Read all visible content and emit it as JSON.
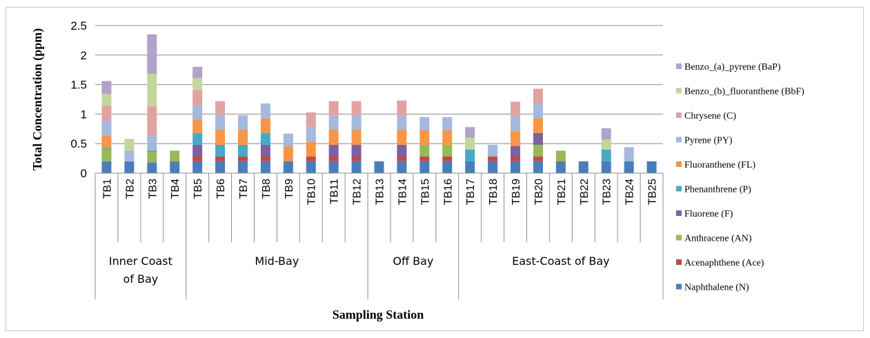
{
  "chart_data": {
    "type": "bar",
    "stacked": true,
    "title": "",
    "ylabel": "Total  Concentration (ppm)",
    "xlabel": "Sampling Station",
    "ylim": [
      0,
      2.5
    ],
    "yticks": [
      "0",
      "0.5",
      "1",
      "1.5",
      "2",
      "2.5"
    ],
    "grid": true,
    "legend_position": "right",
    "categories": [
      "TB1",
      "TB2",
      "TB3",
      "TB4",
      "TB5",
      "TB6",
      "TB7",
      "TB8",
      "TB9",
      "TB10",
      "TB11",
      "TB12",
      "TB13",
      "TB14",
      "TB15",
      "TB16",
      "TB17",
      "TB18",
      "TB19",
      "TB20",
      "TB21",
      "TB22",
      "TB23",
      "TB24",
      "TB25"
    ],
    "groups": [
      {
        "label_lines": [
          "Inner Coast",
          "of Bay"
        ],
        "start": 0,
        "end": 3
      },
      {
        "label_lines": [
          "Mid-Bay"
        ],
        "start": 4,
        "end": 11
      },
      {
        "label_lines": [
          "Off Bay"
        ],
        "start": 12,
        "end": 15
      },
      {
        "label_lines": [
          "East-Coast of Bay"
        ],
        "start": 16,
        "end": 24
      }
    ],
    "series": [
      {
        "name": "Naphthalene (N)",
        "color": "#4a7ebb",
        "values": [
          0.2,
          0.2,
          0.18,
          0.2,
          0.2,
          0.2,
          0.2,
          0.2,
          0.2,
          0.2,
          0.2,
          0.2,
          0.2,
          0.2,
          0.2,
          0.2,
          0.2,
          0.2,
          0.2,
          0.2,
          0.2,
          0.2,
          0.2,
          0.2,
          0.2
        ]
      },
      {
        "name": "Acenaphthene (Ace)",
        "color": "#be4b48",
        "values": [
          0,
          0,
          0,
          0,
          0.08,
          0.08,
          0.08,
          0.08,
          0,
          0.08,
          0.08,
          0.08,
          0,
          0.08,
          0.08,
          0.08,
          0,
          0.08,
          0.08,
          0.08,
          0,
          0,
          0,
          0,
          0
        ]
      },
      {
        "name": "Anthracene (AN)",
        "color": "#98b954",
        "values": [
          0.2,
          0,
          0.18,
          0.18,
          0,
          0,
          0,
          0,
          0,
          0,
          0,
          0,
          0,
          0,
          0.2,
          0.2,
          0,
          0,
          0,
          0.2,
          0.18,
          0,
          0,
          0,
          0
        ]
      },
      {
        "name": "Fluorene (F)",
        "color": "#7d60a0",
        "values": [
          0,
          0,
          0,
          0,
          0.2,
          0,
          0,
          0.2,
          0,
          0,
          0.2,
          0.2,
          0,
          0.2,
          0,
          0,
          0,
          0,
          0.18,
          0.2,
          0,
          0,
          0,
          0,
          0
        ]
      },
      {
        "name": "Phenanthrene (P)",
        "color": "#46aac5",
        "values": [
          0.02,
          0,
          0.02,
          0,
          0.2,
          0.2,
          0.2,
          0.2,
          0,
          0,
          0,
          0,
          0,
          0,
          0,
          0,
          0.2,
          0,
          0,
          0,
          0,
          0,
          0.2,
          0,
          0
        ]
      },
      {
        "name": "Fluoranthene (FL)",
        "color": "#f79646",
        "values": [
          0.22,
          0,
          0,
          0,
          0.22,
          0.25,
          0.25,
          0.25,
          0.25,
          0.25,
          0.25,
          0.25,
          0,
          0.25,
          0.25,
          0.25,
          0,
          0,
          0.25,
          0.25,
          0,
          0,
          0,
          0,
          0
        ]
      },
      {
        "name": "Pyrene (PY)",
        "color": "#a5b8de",
        "values": [
          0.25,
          0.18,
          0.25,
          0,
          0.25,
          0.25,
          0.25,
          0.25,
          0.22,
          0.25,
          0.25,
          0.25,
          0,
          0.25,
          0.22,
          0.22,
          0,
          0.2,
          0.25,
          0.25,
          0,
          0,
          0,
          0.24,
          0
        ]
      },
      {
        "name": "Chrysene (C)",
        "color": "#e0a3a2",
        "values": [
          0.25,
          0,
          0.5,
          0,
          0.26,
          0.24,
          0,
          0,
          0,
          0.25,
          0.24,
          0.24,
          0,
          0.25,
          0,
          0,
          0,
          0,
          0.25,
          0.25,
          0,
          0,
          0,
          0,
          0
        ]
      },
      {
        "name": "Benzo_(b)_fluoranthene (BbF)",
        "color": "#c3d69b",
        "values": [
          0.2,
          0.2,
          0.55,
          0,
          0.2,
          0,
          0,
          0,
          0,
          0,
          0,
          0,
          0,
          0,
          0,
          0,
          0.2,
          0,
          0,
          0,
          0,
          0,
          0.17,
          0,
          0
        ]
      },
      {
        "name": "Benzo_(a)_pyrene (BaP)",
        "color": "#b3a2c7",
        "values": [
          0.22,
          0,
          0.67,
          0,
          0.19,
          0,
          0,
          0,
          0,
          0,
          0,
          0,
          0,
          0,
          0,
          0,
          0.18,
          0,
          0,
          0,
          0,
          0,
          0.19,
          0,
          0
        ]
      }
    ]
  }
}
